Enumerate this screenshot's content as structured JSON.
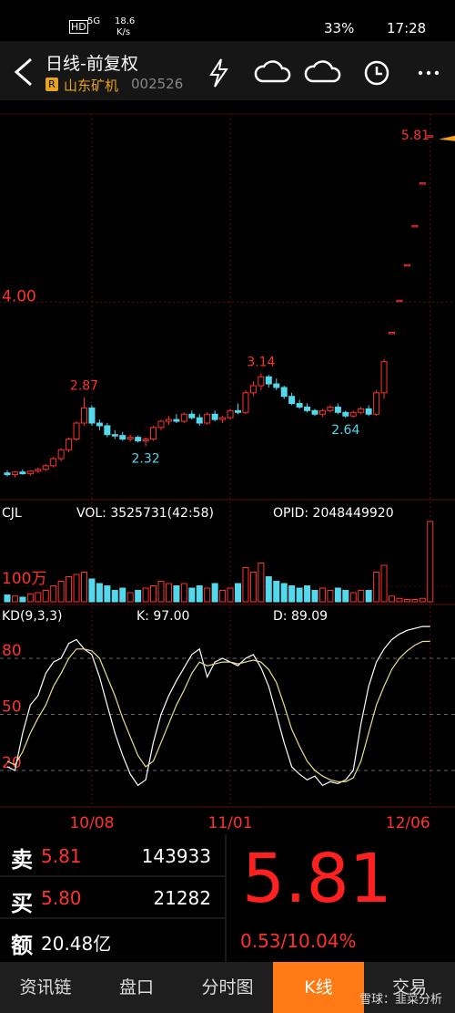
{
  "status_bar": {
    "hd": "HD",
    "net": "5G",
    "speed": "18.6",
    "speed_unit": "K/s",
    "battery": "33%",
    "time": "17:28"
  },
  "header": {
    "title": "日线-前复权",
    "badge": "R",
    "stock_name": "山东矿机",
    "code": "002526"
  },
  "chart_data": {
    "type": "candlestick",
    "categories": [
      null,
      null,
      null,
      null,
      null,
      null,
      null,
      null,
      null,
      null,
      null,
      "10/08",
      null,
      null,
      null,
      null,
      null,
      null,
      null,
      null,
      null,
      null,
      null,
      null,
      null,
      null,
      null,
      null,
      null,
      "11/01",
      null,
      null,
      null,
      null,
      null,
      null,
      null,
      null,
      null,
      null,
      null,
      null,
      null,
      null,
      null,
      null,
      null,
      null,
      null,
      null,
      null,
      null,
      null,
      null,
      null,
      "12/06"
    ],
    "ohlc": [
      [
        2.02,
        2.05,
        1.98,
        2.0
      ],
      [
        2.0,
        2.04,
        1.97,
        2.03
      ],
      [
        2.03,
        2.06,
        2.0,
        2.01
      ],
      [
        2.01,
        2.05,
        1.99,
        2.04
      ],
      [
        2.04,
        2.08,
        2.02,
        2.06
      ],
      [
        2.06,
        2.12,
        2.04,
        2.1
      ],
      [
        2.1,
        2.2,
        2.08,
        2.18
      ],
      [
        2.18,
        2.3,
        2.15,
        2.28
      ],
      [
        2.28,
        2.42,
        2.25,
        2.4
      ],
      [
        2.4,
        2.6,
        2.38,
        2.58
      ],
      [
        2.58,
        2.87,
        2.55,
        2.75
      ],
      [
        2.75,
        2.78,
        2.55,
        2.58
      ],
      [
        2.58,
        2.62,
        2.5,
        2.55
      ],
      [
        2.55,
        2.58,
        2.42,
        2.45
      ],
      [
        2.45,
        2.5,
        2.4,
        2.44
      ],
      [
        2.44,
        2.48,
        2.38,
        2.4
      ],
      [
        2.4,
        2.45,
        2.37,
        2.42
      ],
      [
        2.42,
        2.44,
        2.36,
        2.38
      ],
      [
        2.38,
        2.42,
        2.32,
        2.4
      ],
      [
        2.4,
        2.55,
        2.38,
        2.53
      ],
      [
        2.53,
        2.62,
        2.5,
        2.6
      ],
      [
        2.6,
        2.66,
        2.56,
        2.62
      ],
      [
        2.62,
        2.68,
        2.58,
        2.6
      ],
      [
        2.6,
        2.7,
        2.58,
        2.68
      ],
      [
        2.68,
        2.72,
        2.62,
        2.64
      ],
      [
        2.64,
        2.68,
        2.55,
        2.58
      ],
      [
        2.58,
        2.7,
        2.56,
        2.68
      ],
      [
        2.68,
        2.72,
        2.6,
        2.62
      ],
      [
        2.62,
        2.66,
        2.58,
        2.64
      ],
      [
        2.64,
        2.74,
        2.62,
        2.72
      ],
      [
        2.72,
        2.8,
        2.68,
        2.7
      ],
      [
        2.7,
        2.95,
        2.68,
        2.92
      ],
      [
        2.92,
        3.05,
        2.88,
        3.0
      ],
      [
        3.0,
        3.14,
        2.95,
        3.1
      ],
      [
        3.1,
        3.12,
        2.98,
        3.02
      ],
      [
        3.02,
        3.08,
        2.95,
        2.98
      ],
      [
        2.98,
        3.0,
        2.85,
        2.88
      ],
      [
        2.88,
        2.92,
        2.78,
        2.8
      ],
      [
        2.8,
        2.84,
        2.74,
        2.76
      ],
      [
        2.76,
        2.8,
        2.7,
        2.72
      ],
      [
        2.72,
        2.74,
        2.66,
        2.68
      ],
      [
        2.68,
        2.74,
        2.65,
        2.72
      ],
      [
        2.72,
        2.78,
        2.7,
        2.76
      ],
      [
        2.76,
        2.8,
        2.68,
        2.7
      ],
      [
        2.7,
        2.72,
        2.64,
        2.66
      ],
      [
        2.66,
        2.72,
        2.64,
        2.7
      ],
      [
        2.7,
        2.76,
        2.68,
        2.74
      ],
      [
        2.74,
        2.78,
        2.66,
        2.68
      ],
      [
        2.68,
        2.95,
        2.66,
        2.92
      ],
      [
        2.92,
        3.3,
        2.85,
        3.27
      ],
      [
        3.6,
        3.6,
        3.6,
        3.6
      ],
      [
        3.96,
        3.96,
        3.96,
        3.96
      ],
      [
        4.36,
        4.36,
        4.36,
        4.36
      ],
      [
        4.8,
        4.8,
        4.8,
        4.8
      ],
      [
        5.28,
        5.28,
        5.28,
        5.28
      ],
      [
        5.81,
        5.81,
        5.81,
        5.81
      ]
    ],
    "ylim": [
      1.75,
      5.9
    ],
    "yticks": [
      {
        "value": 4,
        "label": "4.00"
      }
    ],
    "high_labels": [
      2.87,
      3.14
    ],
    "low_labels": [
      2.32,
      2.64
    ],
    "last_price": 5.81,
    "up_color": "#ff3030",
    "down_color": "#54d8ec",
    "volume": {
      "name": "CJL",
      "label": "VOL: 3525731(42:58)",
      "opid": "OPID: 2048449920",
      "values": [
        300000,
        250000,
        200000,
        350000,
        400000,
        500000,
        700000,
        900000,
        1100000,
        1200000,
        1300000,
        1000000,
        800000,
        700000,
        500000,
        600000,
        400000,
        500000,
        600000,
        700000,
        900000,
        800000,
        700000,
        800000,
        600000,
        700000,
        600000,
        800000,
        500000,
        600000,
        800000,
        1500000,
        1300000,
        1700000,
        1100000,
        900000,
        800000,
        700000,
        600000,
        700000,
        500000,
        600000,
        500000,
        600000,
        500000,
        400000,
        500000,
        500000,
        1300000,
        1600000,
        250000,
        150000,
        100000,
        100000,
        150000,
        3525731
      ],
      "ylim": [
        0,
        3600000
      ],
      "yticks": [
        {
          "value": 1000000,
          "label": "100万"
        }
      ]
    },
    "kd": {
      "name": "KD(9,3,3)",
      "k_label": "K: 97.00",
      "d_label": "D: 89.09",
      "series": [
        {
          "color": "#ffffff",
          "values": [
            22,
            20,
            40,
            55,
            60,
            72,
            78,
            80,
            88,
            90,
            85,
            82,
            70,
            55,
            40,
            28,
            18,
            12,
            15,
            35,
            50,
            60,
            68,
            75,
            82,
            85,
            70,
            78,
            80,
            78,
            76,
            80,
            82,
            75,
            65,
            50,
            35,
            22,
            18,
            15,
            17,
            12,
            14,
            13,
            15,
            20,
            45,
            65,
            78,
            85,
            90,
            93,
            95,
            96,
            97,
            97
          ]
        },
        {
          "color": "#e8e08a",
          "values": [
            25,
            23,
            30,
            40,
            48,
            55,
            65,
            72,
            80,
            85,
            85,
            84,
            80,
            70,
            60,
            48,
            38,
            28,
            22,
            25,
            35,
            45,
            55,
            63,
            72,
            78,
            76,
            77,
            78,
            78,
            77,
            78,
            79,
            78,
            74,
            67,
            55,
            42,
            33,
            25,
            20,
            17,
            15,
            14,
            14,
            16,
            25,
            40,
            55,
            65,
            74,
            80,
            84,
            87,
            89,
            89.09
          ]
        }
      ],
      "ylim": [
        0,
        100
      ],
      "yticks": [
        80,
        50,
        20
      ]
    }
  },
  "quote": {
    "sell_label": "卖",
    "sell_price": "5.81",
    "sell_volume": "143933",
    "buy_label": "买",
    "buy_price": "5.80",
    "buy_volume": "21282",
    "amount_label": "额",
    "amount": "20.48亿",
    "price": "5.81",
    "change": "0.53/10.04%"
  },
  "tabs": [
    "资讯链",
    "盘口",
    "分时图",
    "K线",
    "交易"
  ],
  "active_tab": 3,
  "watermark": "雪球：韭菜分析"
}
